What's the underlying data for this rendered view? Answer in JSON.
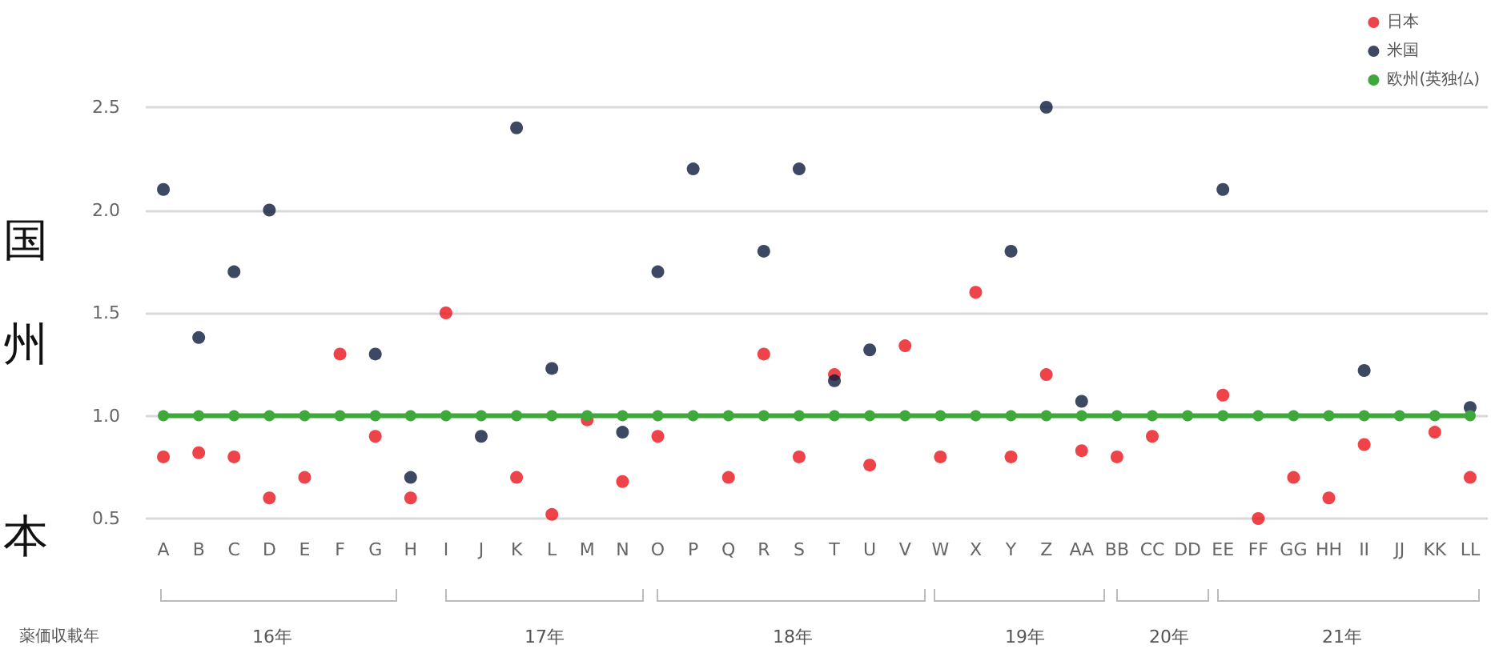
{
  "chart_data": {
    "type": "scatter",
    "categories": [
      "A",
      "B",
      "C",
      "D",
      "E",
      "F",
      "G",
      "H",
      "I",
      "J",
      "K",
      "L",
      "M",
      "N",
      "O",
      "P",
      "Q",
      "R",
      "S",
      "T",
      "U",
      "V",
      "W",
      "X",
      "Y",
      "Z",
      "AA",
      "BB",
      "CC",
      "DD",
      "EE",
      "FF",
      "GG",
      "HH",
      "II",
      "JJ",
      "KK",
      "LL"
    ],
    "series": [
      {
        "name": "日本",
        "color": "#e8141c",
        "values": [
          0.8,
          0.82,
          0.8,
          0.6,
          0.7,
          1.3,
          0.9,
          0.6,
          1.5,
          null,
          0.7,
          0.52,
          0.98,
          0.68,
          0.9,
          null,
          0.7,
          1.3,
          0.8,
          1.2,
          0.76,
          1.34,
          0.8,
          1.6,
          0.8,
          1.2,
          0.83,
          0.8,
          0.9,
          null,
          1.1,
          0.5,
          0.7,
          0.6,
          0.86,
          null,
          0.92,
          0.7
        ]
      },
      {
        "name": "米国",
        "color": "#0d1a3c",
        "values": [
          2.1,
          1.38,
          1.7,
          2.0,
          null,
          null,
          1.3,
          0.7,
          null,
          0.9,
          2.4,
          1.23,
          null,
          0.92,
          1.7,
          2.2,
          null,
          1.8,
          2.2,
          1.17,
          1.32,
          null,
          null,
          null,
          1.8,
          2.5,
          1.07,
          null,
          null,
          null,
          2.1,
          null,
          null,
          null,
          1.22,
          null,
          null,
          1.04
        ]
      },
      {
        "name": "欧州(英独仏)",
        "type": "line",
        "color": "#3fa83a",
        "values": [
          1,
          1,
          1,
          1,
          1,
          1,
          1,
          1,
          1,
          1,
          1,
          1,
          1,
          1,
          1,
          1,
          1,
          1,
          1,
          1,
          1,
          1,
          1,
          1,
          1,
          1,
          1,
          1,
          1,
          1,
          1,
          1,
          1,
          1,
          1,
          1,
          1,
          1
        ]
      }
    ],
    "ylim": [
      0.5,
      2.5
    ],
    "yticks": [
      {
        "value": 0.5,
        "label": "0.5"
      },
      {
        "value": 1,
        "label": "1.0"
      },
      {
        "value": 1.5,
        "label": "1.5"
      },
      {
        "value": 2,
        "label": "2.0"
      },
      {
        "value": 2.5,
        "label": "2.5"
      }
    ],
    "grid": "y",
    "legend": "top right",
    "marker": "circle",
    "xlabel": "薬価収載年",
    "annotations": [
      "国",
      "州",
      "本",
      "16年",
      "17年",
      "18年",
      "19年",
      "20年",
      "21年"
    ]
  }
}
